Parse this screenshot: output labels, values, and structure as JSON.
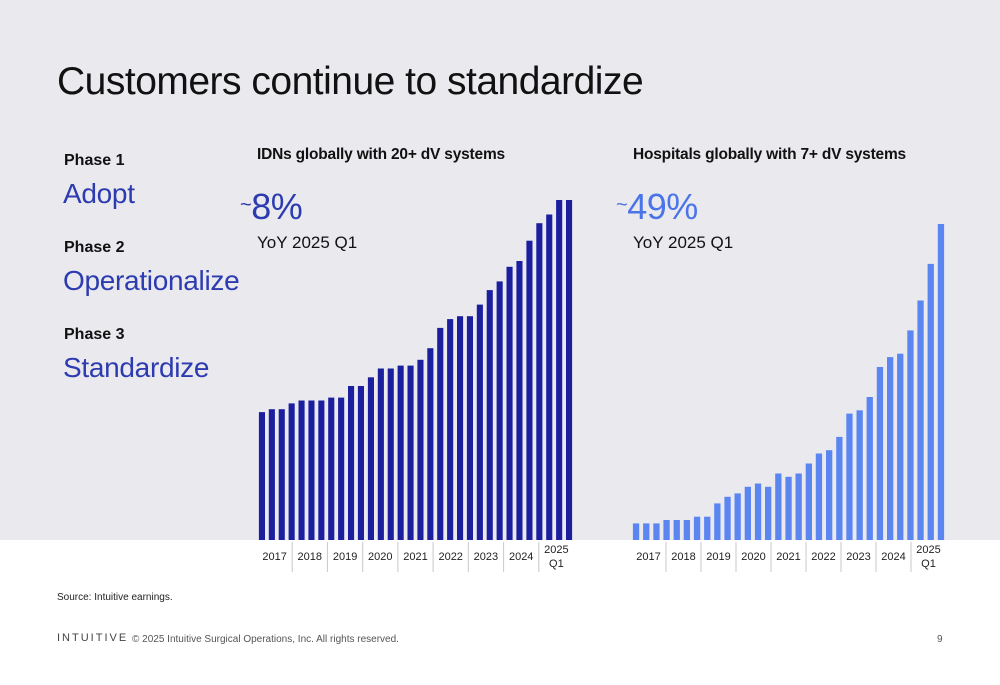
{
  "slide": {
    "title": "Customers continue to standardize",
    "phases": [
      {
        "label": "Phase 1",
        "name": "Adopt"
      },
      {
        "label": "Phase 2",
        "name": "Operationalize"
      },
      {
        "label": "Phase 3",
        "name": "Standardize"
      }
    ],
    "source": "Source: Intuitive earnings.",
    "logo": "INTUITIVE",
    "copyright": "© 2025 Intuitive Surgical Operations, Inc. All rights reserved.",
    "page_number": "9"
  },
  "colors": {
    "idn_bars": "#1b1f9e",
    "hospital_bars": "#5b86f2",
    "stat_idn": "#2d3bb0",
    "stat_hospital": "#4a74e8",
    "phase_name": "#2d3bb0"
  },
  "chart_data": [
    {
      "type": "bar",
      "title": "IDNs globally with 20+ dV systems",
      "stat_prefix": "~",
      "stat_value": "8%",
      "stat_caption": "YoY 2025 Q1",
      "year_labels": [
        "2017",
        "2018",
        "2019",
        "2020",
        "2021",
        "2022",
        "2023",
        "2024",
        "2025\nQ1"
      ],
      "values": [
        44,
        45,
        45,
        47,
        48,
        48,
        48,
        49,
        49,
        53,
        53,
        56,
        59,
        59,
        60,
        60,
        62,
        66,
        73,
        76,
        77,
        77,
        81,
        86,
        89,
        94,
        96,
        103,
        109,
        112,
        117,
        117
      ],
      "ylim": [
        0,
        120
      ],
      "y_axis_shown": false
    },
    {
      "type": "bar",
      "title": "Hospitals globally with 7+ dV systems",
      "stat_prefix": "~",
      "stat_value": "49%",
      "stat_caption": "YoY 2025 Q1",
      "year_labels": [
        "2017",
        "2018",
        "2019",
        "2020",
        "2021",
        "2022",
        "2023",
        "2024",
        "2025\nQ1"
      ],
      "values": [
        5,
        5,
        5,
        6,
        6,
        6,
        7,
        7,
        11,
        13,
        14,
        16,
        17,
        16,
        20,
        19,
        20,
        23,
        26,
        27,
        31,
        38,
        39,
        43,
        52,
        55,
        56,
        63,
        72,
        83,
        95
      ],
      "ylim": [
        0,
        110
      ],
      "y_axis_shown": false
    }
  ]
}
